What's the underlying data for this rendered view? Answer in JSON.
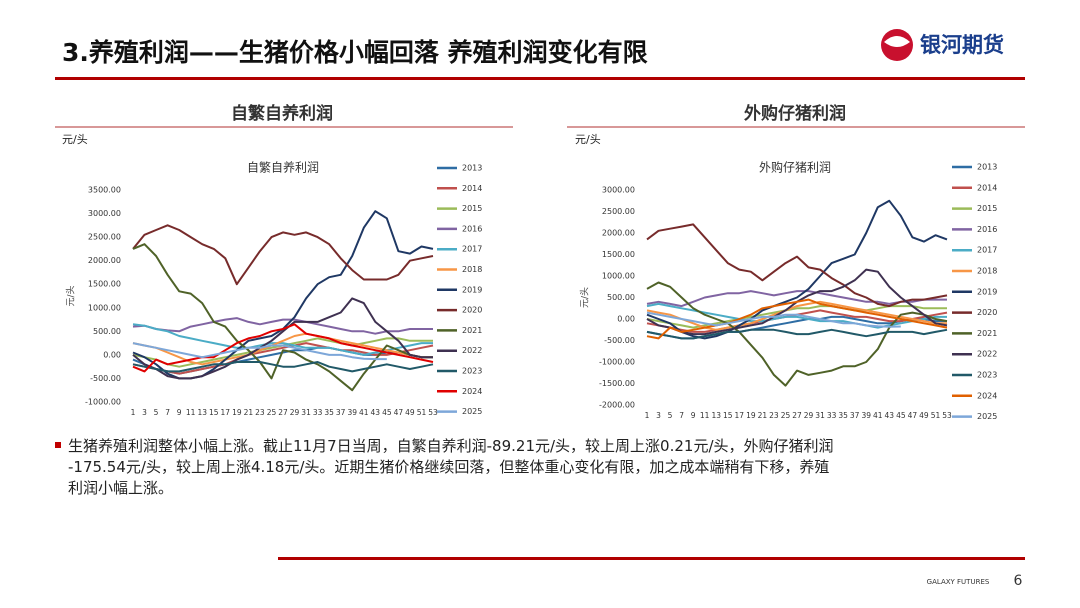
{
  "slide": {
    "title": "3.养殖利润——生猪价格小幅回落  养殖利润变化有限",
    "logo": "银河期货",
    "footer": "GALAXY FUTURES",
    "page": "6",
    "panels": [
      {
        "heading": "自繁自养利润",
        "unit": "元/头"
      },
      {
        "heading": "外购仔猪利润",
        "unit": "元/头"
      }
    ],
    "text": [
      "生猪养殖利润整体小幅上涨。截止11月7日当周，自繁自养利润-89.21元/头，较上周上涨0.21元/头，外购仔猪利润",
      "-175.54元/头，较上周上涨4.18元/头。近期生猪价格继续回落，但整体重心变化有限，加之成本端稍有下移，养殖",
      "利润小幅上涨。"
    ]
  },
  "chart_data": [
    {
      "type": "line",
      "title": "自繁自养利润",
      "y_label": "元/头",
      "categories": [
        1,
        3,
        5,
        7,
        9,
        11,
        13,
        15,
        17,
        19,
        21,
        23,
        25,
        27,
        29,
        31,
        33,
        35,
        37,
        39,
        41,
        43,
        45,
        47,
        49,
        51,
        53
      ],
      "ylim": [
        -1000,
        3500
      ],
      "yticks": [
        {
          "value": -1000,
          "label": "-1000.00"
        },
        {
          "value": -500,
          "label": "-500.00"
        },
        {
          "value": 0,
          "label": "0.00"
        },
        {
          "value": 500,
          "label": "500.00"
        },
        {
          "value": 1000,
          "label": "1000.00"
        },
        {
          "value": 1500,
          "label": "1500.00"
        },
        {
          "value": 2000,
          "label": "2000.00"
        },
        {
          "value": 2500,
          "label": "2500.00"
        },
        {
          "value": 3000,
          "label": "3000.00"
        },
        {
          "value": 3500,
          "label": "3500.00"
        }
      ],
      "series": [
        {
          "name": "2013",
          "color": "#2e6da4",
          "values": [
            -100,
            -200,
            -300,
            -350,
            -400,
            -350,
            -300,
            -250,
            -200,
            -150,
            -100,
            -50,
            0,
            50,
            100,
            100,
            150,
            150,
            100,
            50,
            0,
            0,
            50,
            50,
            0,
            -50,
            -50
          ]
        },
        {
          "name": "2014",
          "color": "#c0504d",
          "values": [
            -200,
            -250,
            -300,
            -350,
            -400,
            -350,
            -300,
            -250,
            -200,
            -100,
            0,
            50,
            100,
            150,
            200,
            250,
            200,
            150,
            100,
            100,
            50,
            0,
            0,
            50,
            100,
            150,
            200
          ]
        },
        {
          "name": "2015",
          "color": "#9bbb59",
          "values": [
            0,
            -50,
            -100,
            -200,
            -250,
            -200,
            -150,
            -100,
            -50,
            0,
            50,
            100,
            150,
            200,
            250,
            300,
            350,
            300,
            250,
            200,
            250,
            300,
            350,
            350,
            300,
            300,
            300
          ]
        },
        {
          "name": "2016",
          "color": "#8064a2",
          "values": [
            600,
            620,
            550,
            520,
            500,
            600,
            650,
            700,
            750,
            780,
            700,
            650,
            700,
            750,
            750,
            700,
            650,
            600,
            550,
            500,
            500,
            450,
            500,
            500,
            550,
            550,
            550
          ]
        },
        {
          "name": "2017",
          "color": "#4bacc6",
          "values": [
            650,
            620,
            550,
            500,
            400,
            350,
            300,
            250,
            200,
            150,
            150,
            200,
            250,
            250,
            200,
            150,
            150,
            150,
            100,
            50,
            0,
            50,
            100,
            150,
            200,
            250,
            250
          ]
        },
        {
          "name": "2018",
          "color": "#f79646",
          "values": [
            250,
            200,
            150,
            50,
            -50,
            -150,
            -200,
            -150,
            -100,
            -50,
            0,
            100,
            200,
            300,
            400,
            450,
            400,
            350,
            300,
            250,
            200,
            150,
            100,
            50,
            0,
            -50,
            -50
          ]
        },
        {
          "name": "2019",
          "color": "#1f3864",
          "values": [
            50,
            -50,
            -200,
            -400,
            -500,
            -500,
            -450,
            -300,
            -100,
            100,
            300,
            350,
            400,
            550,
            800,
            1200,
            1500,
            1650,
            1700,
            2100,
            2700,
            3050,
            2900,
            2200,
            2150,
            2300,
            2250
          ]
        },
        {
          "name": "2020",
          "color": "#772b2b",
          "values": [
            2250,
            2550,
            2650,
            2750,
            2650,
            2500,
            2350,
            2250,
            2050,
            1500,
            1850,
            2200,
            2500,
            2600,
            2550,
            2600,
            2500,
            2350,
            2050,
            1800,
            1600,
            1600,
            1600,
            1700,
            2000,
            2050,
            2100
          ]
        },
        {
          "name": "2021",
          "color": "#4f6228",
          "values": [
            2250,
            2350,
            2100,
            1700,
            1350,
            1300,
            1100,
            700,
            600,
            300,
            100,
            -150,
            -500,
            100,
            50,
            -100,
            -200,
            -350,
            -550,
            -750,
            -400,
            -100,
            200,
            100,
            0,
            -50,
            -50
          ]
        },
        {
          "name": "2022",
          "color": "#3f3151",
          "values": [
            0,
            -200,
            -300,
            -450,
            -500,
            -500,
            -450,
            -350,
            -250,
            -100,
            0,
            150,
            300,
            500,
            700,
            700,
            700,
            800,
            900,
            1200,
            1100,
            700,
            500,
            300,
            0,
            -50,
            -50
          ]
        },
        {
          "name": "2023",
          "color": "#215968",
          "values": [
            -200,
            -250,
            -300,
            -350,
            -350,
            -300,
            -250,
            -200,
            -200,
            -150,
            -150,
            -150,
            -200,
            -250,
            -250,
            -200,
            -150,
            -250,
            -300,
            -350,
            -300,
            -250,
            -200,
            -250,
            -300,
            -250,
            -200
          ]
        },
        {
          "name": "2024",
          "color": "#e00000",
          "values": [
            -250,
            -350,
            -100,
            -200,
            -150,
            -100,
            -50,
            -50,
            100,
            250,
            350,
            400,
            500,
            550,
            650,
            450,
            400,
            350,
            250,
            200,
            150,
            100,
            50,
            0,
            -50,
            -100,
            -150
          ]
        },
        {
          "name": "2025",
          "color": "#7da7d9",
          "values": [
            250,
            200,
            150,
            100,
            50,
            0,
            -50,
            0,
            50,
            100,
            150,
            150,
            200,
            200,
            150,
            100,
            50,
            0,
            0,
            -50,
            -80,
            -90,
            -89.21,
            null,
            null,
            null,
            null
          ]
        }
      ]
    },
    {
      "type": "line",
      "title": "外购仔猪利润",
      "y_label": "元/头",
      "categories": [
        1,
        3,
        5,
        7,
        9,
        11,
        13,
        15,
        17,
        19,
        21,
        23,
        25,
        27,
        29,
        31,
        33,
        35,
        37,
        39,
        41,
        43,
        45,
        47,
        49,
        51,
        53
      ],
      "ylim": [
        -2000,
        3000
      ],
      "yticks": [
        {
          "value": -2000,
          "label": "-2000.00"
        },
        {
          "value": -1500,
          "label": "-1500.00"
        },
        {
          "value": -1000,
          "label": "-1000.00"
        },
        {
          "value": -500,
          "label": "-500.00"
        },
        {
          "value": 0,
          "label": "0.00"
        },
        {
          "value": 500,
          "label": "500.00"
        },
        {
          "value": 1000,
          "label": "1000.00"
        },
        {
          "value": 1500,
          "label": "1500.00"
        },
        {
          "value": 2000,
          "label": "2000.00"
        },
        {
          "value": 2500,
          "label": "2500.00"
        },
        {
          "value": 3000,
          "label": "3000.00"
        }
      ],
      "series": [
        {
          "name": "2013",
          "color": "#2e6da4",
          "values": [
            -300,
            -350,
            -400,
            -450,
            -450,
            -400,
            -350,
            -300,
            -300,
            -250,
            -200,
            -150,
            -100,
            -50,
            0,
            0,
            50,
            50,
            0,
            -50,
            -100,
            -100,
            -50,
            0,
            0,
            -50,
            -50
          ]
        },
        {
          "name": "2014",
          "color": "#c0504d",
          "values": [
            -100,
            -150,
            -200,
            -250,
            -300,
            -300,
            -250,
            -200,
            -150,
            -100,
            -50,
            0,
            50,
            100,
            150,
            200,
            150,
            100,
            50,
            50,
            0,
            -50,
            -50,
            0,
            50,
            100,
            150
          ]
        },
        {
          "name": "2015",
          "color": "#9bbb59",
          "values": [
            0,
            -50,
            -100,
            -150,
            -200,
            -150,
            -100,
            -50,
            0,
            50,
            100,
            150,
            200,
            250,
            250,
            300,
            300,
            250,
            200,
            200,
            250,
            300,
            300,
            300,
            250,
            250,
            250
          ]
        },
        {
          "name": "2016",
          "color": "#8064a2",
          "values": [
            350,
            400,
            350,
            300,
            400,
            500,
            550,
            600,
            600,
            650,
            600,
            550,
            600,
            650,
            650,
            600,
            550,
            500,
            450,
            400,
            400,
            350,
            400,
            400,
            450,
            450,
            450
          ]
        },
        {
          "name": "2017",
          "color": "#4bacc6",
          "values": [
            300,
            350,
            300,
            250,
            200,
            150,
            100,
            50,
            0,
            -50,
            -50,
            0,
            50,
            50,
            0,
            -50,
            -50,
            -50,
            -100,
            -150,
            -200,
            -150,
            -100,
            -50,
            0,
            50,
            50
          ]
        },
        {
          "name": "2018",
          "color": "#f79646",
          "values": [
            200,
            150,
            100,
            0,
            -100,
            -200,
            -250,
            -200,
            -150,
            -100,
            0,
            100,
            200,
            300,
            350,
            400,
            350,
            300,
            250,
            200,
            150,
            100,
            50,
            0,
            -50,
            -100,
            -100
          ]
        },
        {
          "name": "2019",
          "color": "#1f3864",
          "values": [
            100,
            0,
            -100,
            -300,
            -400,
            -450,
            -400,
            -300,
            -150,
            0,
            200,
            300,
            400,
            500,
            700,
            1000,
            1300,
            1400,
            1500,
            2000,
            2600,
            2750,
            2400,
            1900,
            1800,
            1950,
            1850
          ]
        },
        {
          "name": "2020",
          "color": "#772b2b",
          "values": [
            1850,
            2050,
            2100,
            2150,
            2200,
            1900,
            1600,
            1300,
            1150,
            1100,
            900,
            1100,
            1300,
            1450,
            1200,
            1150,
            950,
            800,
            600,
            500,
            350,
            300,
            400,
            450,
            450,
            500,
            550
          ]
        },
        {
          "name": "2021",
          "color": "#4f6228",
          "values": [
            700,
            850,
            750,
            500,
            250,
            100,
            0,
            -100,
            -300,
            -600,
            -900,
            -1300,
            -1550,
            -1200,
            -1300,
            -1250,
            -1200,
            -1100,
            -1100,
            -1000,
            -700,
            -200,
            100,
            150,
            100,
            0,
            -50
          ]
        },
        {
          "name": "2022",
          "color": "#3f3151",
          "values": [
            0,
            -150,
            -200,
            -300,
            -350,
            -350,
            -300,
            -250,
            -200,
            -150,
            -100,
            50,
            200,
            400,
            550,
            650,
            650,
            750,
            900,
            1150,
            1100,
            750,
            500,
            300,
            100,
            -100,
            -150
          ]
        },
        {
          "name": "2023",
          "color": "#215968",
          "values": [
            -300,
            -350,
            -400,
            -450,
            -450,
            -400,
            -350,
            -300,
            -300,
            -250,
            -250,
            -250,
            -300,
            -350,
            -350,
            -300,
            -250,
            -300,
            -350,
            -400,
            -350,
            -300,
            -300,
            -300,
            -350,
            -300,
            -250
          ]
        },
        {
          "name": "2024",
          "color": "#e06000",
          "values": [
            -400,
            -450,
            -200,
            -300,
            -250,
            -200,
            -150,
            -100,
            0,
            100,
            250,
            300,
            350,
            400,
            450,
            350,
            300,
            250,
            200,
            150,
            100,
            50,
            0,
            -50,
            -100,
            -150,
            -200
          ]
        },
        {
          "name": "2025",
          "color": "#7da7d9",
          "values": [
            150,
            100,
            50,
            0,
            -50,
            -100,
            -150,
            -100,
            -50,
            0,
            50,
            50,
            100,
            100,
            50,
            0,
            -50,
            -100,
            -100,
            -150,
            -170,
            -180,
            -175.54,
            null,
            null,
            null,
            null
          ]
        }
      ]
    }
  ]
}
